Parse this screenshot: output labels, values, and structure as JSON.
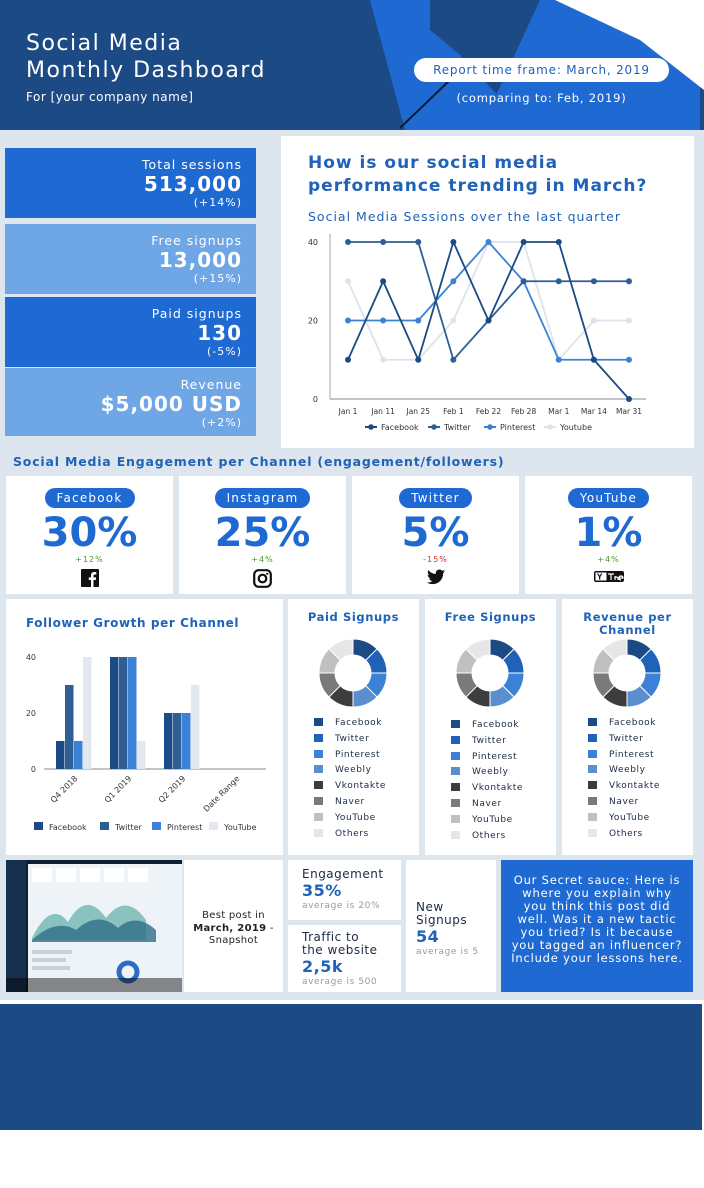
{
  "header": {
    "title_line1": "Social Media",
    "title_line2": "Monthly Dashboard",
    "subtitle": "For [your company name]",
    "timeframe": "Report time frame: March, 2019",
    "comparing": "(comparing to: Feb, 2019)"
  },
  "kpis": [
    {
      "label": "Total sessions",
      "value": "513,000",
      "change": "(+14%)"
    },
    {
      "label": "Free signups",
      "value": "13,000",
      "change": "(+15%)"
    },
    {
      "label": "Paid signups",
      "value": "130",
      "change": "(-5%)"
    },
    {
      "label": "Revenue",
      "value": "$5,000 USD",
      "change": "(+2%)"
    }
  ],
  "trend": {
    "question": "How is our social media performance trending in March?",
    "subtitle": "Social Media Sessions over the last quarter"
  },
  "engagement": {
    "heading": "Social Media Engagement per Channel (engagement/followers)",
    "channels": [
      {
        "name": "Facebook",
        "pct": "30%",
        "change": "+12%",
        "icon": "facebook-icon"
      },
      {
        "name": "Instagram",
        "pct": "25%",
        "change": "+4%",
        "icon": "instagram-icon"
      },
      {
        "name": "Twitter",
        "pct": "5%",
        "change": "-15%",
        "icon": "twitter-icon"
      },
      {
        "name": "YouTube",
        "pct": "1%",
        "change": "+4%",
        "icon": "youtube-icon"
      }
    ]
  },
  "growth": {
    "title": "Follower Growth per Channel"
  },
  "donuts": [
    {
      "title": "Paid Signups",
      "title2": ""
    },
    {
      "title": "Free Signups",
      "title2": ""
    },
    {
      "title": "Revenue per",
      "title2": "Channel"
    }
  ],
  "donut_legend": [
    "Facebook",
    "Twitter",
    "Pinterest",
    "Weebly",
    "Vkontakte",
    "Naver",
    "YouTube",
    "Others"
  ],
  "donut_colors": [
    "#1c4a85",
    "#1f62b8",
    "#3b82d6",
    "#5a8fcf",
    "#3d3d3d",
    "#7a7a7a",
    "#c0c0c0",
    "#e6e6e6"
  ],
  "bottom": {
    "best_post_l1": "Best post in",
    "best_post_l2": "March, 2019",
    "best_post_l2b": " -",
    "best_post_l3": "Snapshot",
    "engagement_label": "Engagement",
    "engagement_value": "35%",
    "engagement_sub": "average is 20%",
    "traffic_label1": "Traffic to",
    "traffic_label2": "the website",
    "traffic_value": "2,5k",
    "traffic_sub": "average is 500",
    "signups_label1": "New",
    "signups_label2": "Signups",
    "signups_value": "54",
    "signups_sub": "average is 5",
    "secret": "Our Secret sauce: Here is where you explain why you think this post did well. Was it a new tactic you tried? Is it because you tagged an influencer? Include your lessons here."
  },
  "chart_data": [
    {
      "type": "line",
      "title": "Social Media Sessions over the last quarter",
      "x": [
        "Jan 1",
        "Jan 11",
        "Jan 25",
        "Feb 1",
        "Feb 22",
        "Feb 28",
        "Mar 1",
        "Mar 14",
        "Mar 31"
      ],
      "ylim": [
        0,
        40
      ],
      "yticks": [
        0,
        20,
        40
      ],
      "legend_position": "bottom",
      "series": [
        {
          "name": "Facebook",
          "color": "#1c4a85",
          "values": [
            10,
            30,
            10,
            40,
            20,
            40,
            40,
            10,
            0
          ]
        },
        {
          "name": "Twitter",
          "color": "#2d5f95",
          "values": [
            40,
            40,
            40,
            10,
            20,
            30,
            30,
            30,
            30
          ]
        },
        {
          "name": "Pinterest",
          "color": "#3b82d6",
          "values": [
            20,
            20,
            20,
            30,
            40,
            30,
            10,
            10,
            10
          ]
        },
        {
          "name": "Youtube",
          "color": "#dde3ea",
          "values": [
            30,
            10,
            10,
            20,
            40,
            40,
            10,
            20,
            20
          ]
        }
      ]
    },
    {
      "type": "bar",
      "title": "Follower Growth per Channel",
      "categories": [
        "Q4 2018",
        "Q1 2019",
        "Q2 2019",
        "Date Range"
      ],
      "ylim": [
        0,
        40
      ],
      "yticks": [
        0,
        20,
        40
      ],
      "legend_position": "bottom",
      "series": [
        {
          "name": "Facebook",
          "color": "#1c4a85",
          "values": [
            10,
            40,
            20,
            0
          ]
        },
        {
          "name": "Twitter",
          "color": "#2d5f95",
          "values": [
            30,
            40,
            20,
            0
          ]
        },
        {
          "name": "Pinterest",
          "color": "#3b82d6",
          "values": [
            10,
            40,
            20,
            0
          ]
        },
        {
          "name": "YouTube",
          "color": "#e3e8ef",
          "values": [
            40,
            10,
            30,
            0
          ]
        }
      ]
    },
    {
      "type": "pie",
      "title": "Paid Signups",
      "categories": [
        "Facebook",
        "Twitter",
        "Pinterest",
        "Weebly",
        "Vkontakte",
        "Naver",
        "YouTube",
        "Others"
      ],
      "values": [
        12.5,
        12.5,
        12.5,
        12.5,
        12.5,
        12.5,
        12.5,
        12.5
      ]
    },
    {
      "type": "pie",
      "title": "Free Signups",
      "categories": [
        "Facebook",
        "Twitter",
        "Pinterest",
        "Weebly",
        "Vkontakte",
        "Naver",
        "YouTube",
        "Others"
      ],
      "values": [
        12.5,
        12.5,
        12.5,
        12.5,
        12.5,
        12.5,
        12.5,
        12.5
      ]
    },
    {
      "type": "pie",
      "title": "Revenue per Channel",
      "categories": [
        "Facebook",
        "Twitter",
        "Pinterest",
        "Weebly",
        "Vkontakte",
        "Naver",
        "YouTube",
        "Others"
      ],
      "values": [
        12.5,
        12.5,
        12.5,
        12.5,
        12.5,
        12.5,
        12.5,
        12.5
      ]
    }
  ]
}
